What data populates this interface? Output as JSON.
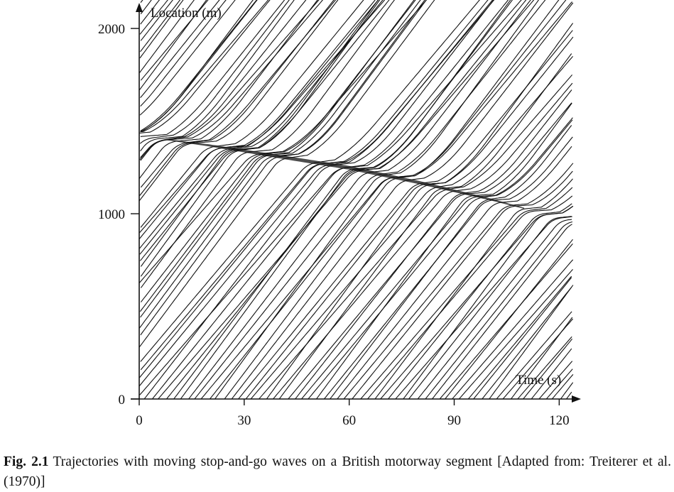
{
  "chart_data": {
    "type": "line",
    "title": "",
    "xlabel": "Time (s)",
    "ylabel": "Location (m)",
    "xlim": [
      0,
      125
    ],
    "ylim": [
      0,
      2100
    ],
    "x_ticks": [
      0,
      30,
      60,
      90,
      120
    ],
    "x_tick_labels": [
      "0",
      "30",
      "60",
      "90",
      "120"
    ],
    "y_ticks": [
      0,
      1000,
      2000
    ],
    "y_tick_labels": [
      "0",
      "1000",
      "2000"
    ],
    "grid": false,
    "legend": "none",
    "line_color": "#111111",
    "jam_wave": {
      "x": [
        0,
        20,
        40,
        60,
        80,
        100,
        110
      ],
      "y": [
        1420,
        1370,
        1310,
        1250,
        1170,
        1080,
        1030
      ]
    },
    "trajectories_per_figure": 130
  },
  "caption": {
    "label": "Fig. 2.1",
    "text": "Trajectories with moving stop-and-go waves on a British motorway segment [Adapted from: Treiterer et al. (1970)]"
  }
}
